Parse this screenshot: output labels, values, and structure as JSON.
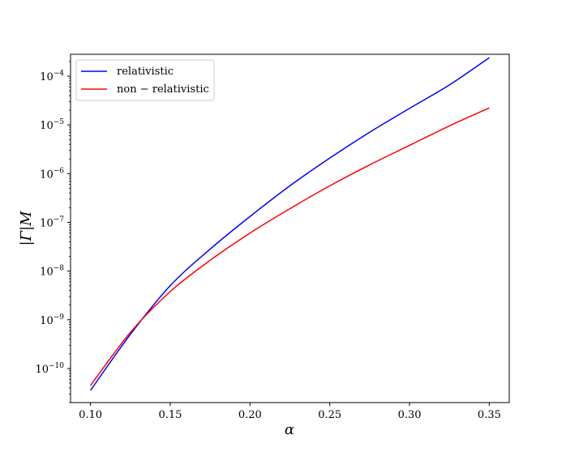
{
  "chart_data": {
    "type": "line",
    "title": "",
    "xlabel": "α",
    "ylabel": "|Γ|M",
    "xlim": [
      0.0875,
      0.3625
    ],
    "ylim": [
      -10.7,
      -3.55
    ],
    "yscale": "log",
    "grid": false,
    "legend_placement": "top-left",
    "x_ticks": [
      0.1,
      0.15,
      0.2,
      0.25,
      0.3,
      0.35
    ],
    "x_tick_labels": [
      "0.10",
      "0.15",
      "0.20",
      "0.25",
      "0.30",
      "0.35"
    ],
    "y_ticks_log10": [
      -10,
      -9,
      -8,
      -7,
      -6,
      -5,
      -4
    ],
    "y_tick_labels": [
      {
        "base": "10",
        "exp": "−10"
      },
      {
        "base": "10",
        "exp": "−9"
      },
      {
        "base": "10",
        "exp": "−8"
      },
      {
        "base": "10",
        "exp": "−7"
      },
      {
        "base": "10",
        "exp": "−6"
      },
      {
        "base": "10",
        "exp": "−5"
      },
      {
        "base": "10",
        "exp": "−4"
      }
    ],
    "x": [
      0.1,
      0.125,
      0.15,
      0.175,
      0.2,
      0.225,
      0.25,
      0.275,
      0.3,
      0.325,
      0.35
    ],
    "series": [
      {
        "name": "relativistic",
        "color": "#0000ff",
        "values_log10": [
          -10.45,
          -9.3,
          -8.3,
          -7.55,
          -6.88,
          -6.25,
          -5.68,
          -5.15,
          -4.66,
          -4.18,
          -3.62
        ]
      },
      {
        "name": "non − relativistic",
        "color": "#ff0000",
        "values_log10": [
          -10.35,
          -9.26,
          -8.42,
          -7.78,
          -7.22,
          -6.72,
          -6.25,
          -5.82,
          -5.42,
          -5.02,
          -4.65
        ]
      }
    ]
  }
}
